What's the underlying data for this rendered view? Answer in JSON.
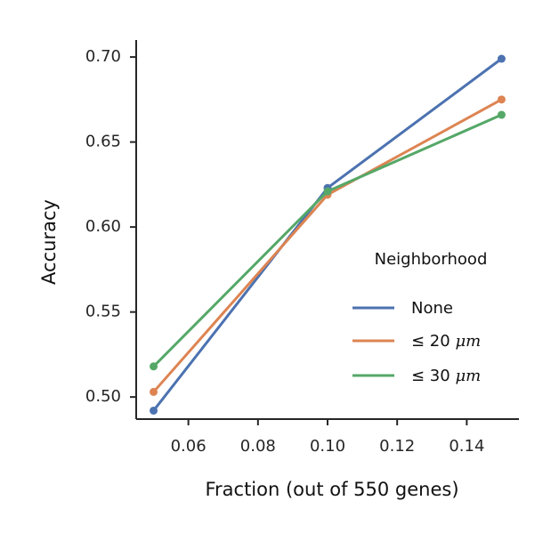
{
  "chart_data": {
    "type": "line",
    "xlabel": "Fraction (out of 550 genes)",
    "ylabel": "Accuracy",
    "x": [
      0.05,
      0.1,
      0.15
    ],
    "xlim": [
      0.045,
      0.155
    ],
    "ylim": [
      0.487,
      0.71
    ],
    "xticks": [
      0.06,
      0.08,
      0.1,
      0.12,
      0.14
    ],
    "xtick_labels": [
      "0.06",
      "0.08",
      "0.10",
      "0.12",
      "0.14"
    ],
    "yticks": [
      0.5,
      0.55,
      0.6,
      0.65,
      0.7
    ],
    "ytick_labels": [
      "0.50",
      "0.55",
      "0.60",
      "0.65",
      "0.70"
    ],
    "grid": false,
    "legend": {
      "title": "Neighborhood",
      "placement": "center-right",
      "entries": [
        {
          "text": "None"
        },
        {
          "prefix": "≤ 20 ",
          "math": "μm"
        },
        {
          "prefix": "≤ 30 ",
          "math": "μm"
        }
      ]
    },
    "series": [
      {
        "name": "None",
        "color": "#4c72b0",
        "values": [
          0.492,
          0.623,
          0.699
        ]
      },
      {
        "name": "≤ 20 μm",
        "color": "#dd8452",
        "values": [
          0.503,
          0.619,
          0.675
        ]
      },
      {
        "name": "≤ 30 μm",
        "color": "#55a868",
        "values": [
          0.518,
          0.621,
          0.666
        ]
      }
    ]
  }
}
